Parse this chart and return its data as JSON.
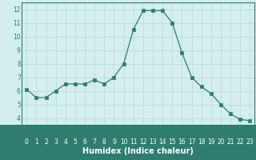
{
  "x": [
    0,
    1,
    2,
    3,
    4,
    5,
    6,
    7,
    8,
    9,
    10,
    11,
    12,
    13,
    14,
    15,
    16,
    17,
    18,
    19,
    20,
    21,
    22,
    23
  ],
  "y": [
    6.1,
    5.5,
    5.5,
    6.0,
    6.5,
    6.5,
    6.5,
    6.8,
    6.5,
    7.0,
    8.0,
    10.5,
    11.9,
    11.9,
    11.9,
    11.0,
    8.8,
    7.0,
    6.3,
    5.8,
    5.0,
    4.3,
    3.9,
    3.8
  ],
  "line_color": "#2e7d6e",
  "marker": "s",
  "marker_size": 2.2,
  "bg_color": "#d4eeee",
  "grid_color": "#b8d8d8",
  "xlabel": "Humidex (Indice chaleur)",
  "xlim": [
    -0.5,
    23.5
  ],
  "ylim": [
    3.5,
    12.5
  ],
  "xticks": [
    0,
    1,
    2,
    3,
    4,
    5,
    6,
    7,
    8,
    9,
    10,
    11,
    12,
    13,
    14,
    15,
    16,
    17,
    18,
    19,
    20,
    21,
    22,
    23
  ],
  "yticks": [
    4,
    5,
    6,
    7,
    8,
    9,
    10,
    11,
    12
  ],
  "tick_fontsize": 5.5,
  "xlabel_fontsize": 7.0,
  "bottom_bar_color": "#2e7d6e",
  "bottom_bar_text_color": "#ffffff",
  "axis_text_color": "#2e7d6e"
}
